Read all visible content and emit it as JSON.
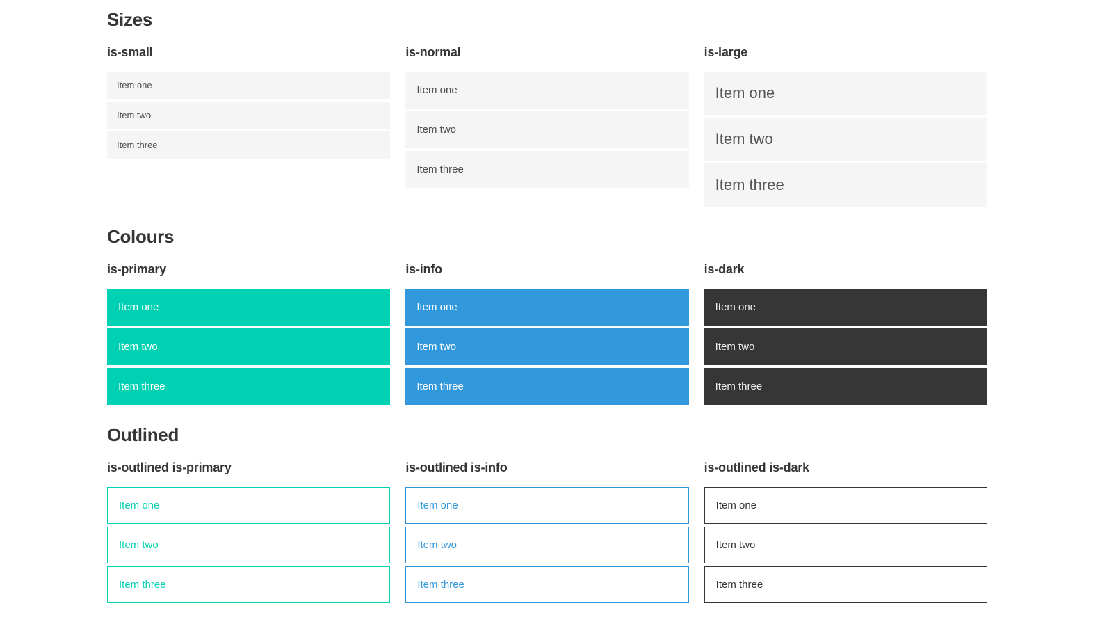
{
  "sections": [
    {
      "title": "Sizes",
      "groups": [
        {
          "label": "is-small",
          "items": [
            "Item one",
            "Item two",
            "Item three"
          ]
        },
        {
          "label": "is-normal",
          "items": [
            "Item one",
            "Item two",
            "Item three"
          ]
        },
        {
          "label": "is-large",
          "items": [
            "Item one",
            "Item two",
            "Item three"
          ]
        }
      ]
    },
    {
      "title": "Colours",
      "groups": [
        {
          "label": "is-primary",
          "items": [
            "Item one",
            "Item two",
            "Item three"
          ]
        },
        {
          "label": "is-info",
          "items": [
            "Item one",
            "Item two",
            "Item three"
          ]
        },
        {
          "label": "is-dark",
          "items": [
            "Item one",
            "Item two",
            "Item three"
          ]
        }
      ]
    },
    {
      "title": "Outlined",
      "groups": [
        {
          "label": "is-outlined is-primary",
          "items": [
            "Item one",
            "Item two",
            "Item three"
          ]
        },
        {
          "label": "is-outlined is-info",
          "items": [
            "Item one",
            "Item two",
            "Item three"
          ]
        },
        {
          "label": "is-outlined is-dark",
          "items": [
            "Item one",
            "Item two",
            "Item three"
          ]
        }
      ]
    }
  ],
  "colors": {
    "primary": "#00d1b2",
    "info": "#3298dc",
    "dark": "#363636",
    "item-bg": "#f5f5f5",
    "item-text": "#4a4a4a",
    "heading-text": "#363636",
    "inverted-text": "#ffffff"
  }
}
